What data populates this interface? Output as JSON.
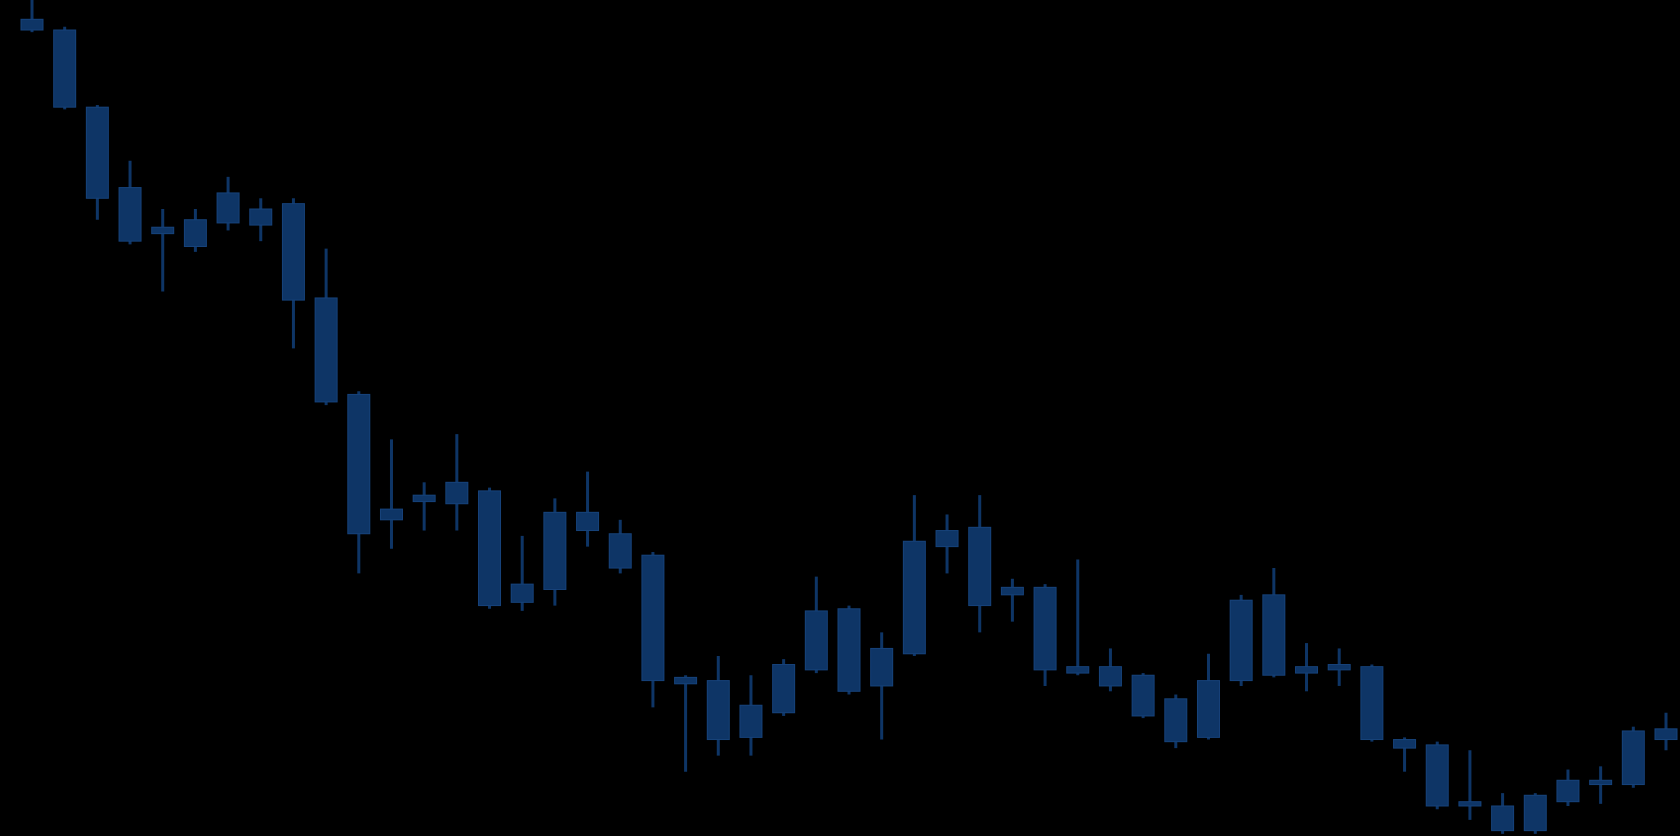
{
  "chart_data": {
    "type": "candlestick",
    "color": "#0e3566",
    "categories": [
      null,
      null,
      null,
      null,
      null,
      null,
      null,
      null,
      null,
      null,
      null,
      null,
      null,
      null,
      null,
      null,
      null,
      null,
      null,
      null,
      null,
      null,
      null,
      null,
      null,
      null,
      null,
      null,
      null,
      null,
      null,
      null,
      null,
      null,
      null,
      null,
      null,
      null,
      null,
      null,
      null,
      null,
      null,
      null,
      null,
      null,
      null,
      null,
      null,
      null,
      null
    ],
    "ylim": [
      0,
      780
    ],
    "open": [
      762,
      752,
      680,
      605,
      568,
      575,
      572,
      585,
      590,
      502,
      412,
      305,
      318,
      310,
      322,
      235,
      230,
      302,
      282,
      262,
      148,
      90,
      122,
      115,
      155,
      212,
      175,
      170,
      285,
      288,
      232,
      232,
      158,
      158,
      150,
      128,
      92,
      145,
      225,
      158,
      160,
      158,
      90,
      85,
      32,
      5,
      5,
      32,
      52,
      48,
      100
    ],
    "high": [
      780,
      755,
      682,
      630,
      585,
      585,
      615,
      595,
      595,
      548,
      415,
      370,
      330,
      375,
      325,
      280,
      315,
      340,
      295,
      265,
      150,
      168,
      150,
      165,
      242,
      215,
      190,
      318,
      300,
      318,
      240,
      235,
      258,
      175,
      152,
      132,
      170,
      225,
      250,
      180,
      175,
      160,
      92,
      88,
      80,
      40,
      40,
      62,
      65,
      102,
      115
    ],
    "low": [
      750,
      678,
      575,
      552,
      508,
      545,
      565,
      555,
      455,
      402,
      245,
      268,
      285,
      285,
      212,
      210,
      215,
      270,
      245,
      120,
      60,
      75,
      75,
      112,
      152,
      132,
      90,
      168,
      245,
      190,
      200,
      140,
      150,
      135,
      110,
      82,
      90,
      140,
      148,
      135,
      140,
      88,
      60,
      25,
      15,
      2,
      2,
      28,
      30,
      45,
      80
    ],
    "close": [
      752,
      680,
      595,
      555,
      562,
      550,
      600,
      570,
      500,
      405,
      282,
      295,
      312,
      330,
      215,
      218,
      302,
      285,
      250,
      145,
      142,
      145,
      92,
      160,
      210,
      135,
      140,
      275,
      270,
      215,
      225,
      155,
      152,
      140,
      112,
      88,
      145,
      220,
      150,
      152,
      155,
      90,
      82,
      28,
      28,
      28,
      38,
      52,
      48,
      98,
      90
    ]
  }
}
